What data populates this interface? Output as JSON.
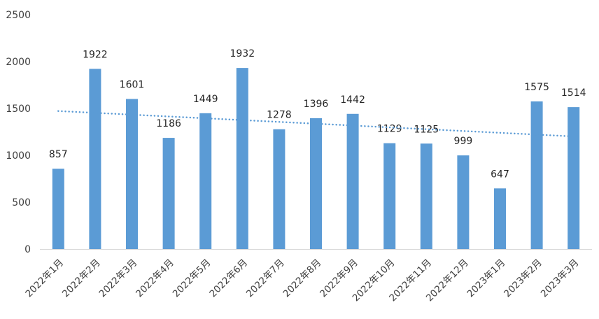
{
  "chart_data": {
    "type": "bar",
    "title": "",
    "xlabel": "",
    "ylabel": "",
    "categories": [
      "2022年1月",
      "2022年2月",
      "2022年3月",
      "2022年4月",
      "2022年5月",
      "2022年6月",
      "2022年7月",
      "2022年8月",
      "2022年9月",
      "2022年10月",
      "2022年11月",
      "2022年12月",
      "2023年1月",
      "2023年2月",
      "2023年3月"
    ],
    "values": [
      857,
      1922,
      1601,
      1186,
      1449,
      1932,
      1278,
      1396,
      1442,
      1129,
      1125,
      999,
      647,
      1575,
      1514
    ],
    "ylim": [
      0,
      2500
    ],
    "yticks": [
      0,
      500,
      1000,
      1500,
      2000,
      2500
    ],
    "grid": false,
    "legend": "none",
    "data_labels": true,
    "trendline": {
      "type": "linear",
      "style": "dotted"
    },
    "colors": {
      "bar": "#5b9bd5",
      "trendline": "#5b9bd5",
      "axis": "#d9d9d9",
      "text": "#404040"
    }
  }
}
